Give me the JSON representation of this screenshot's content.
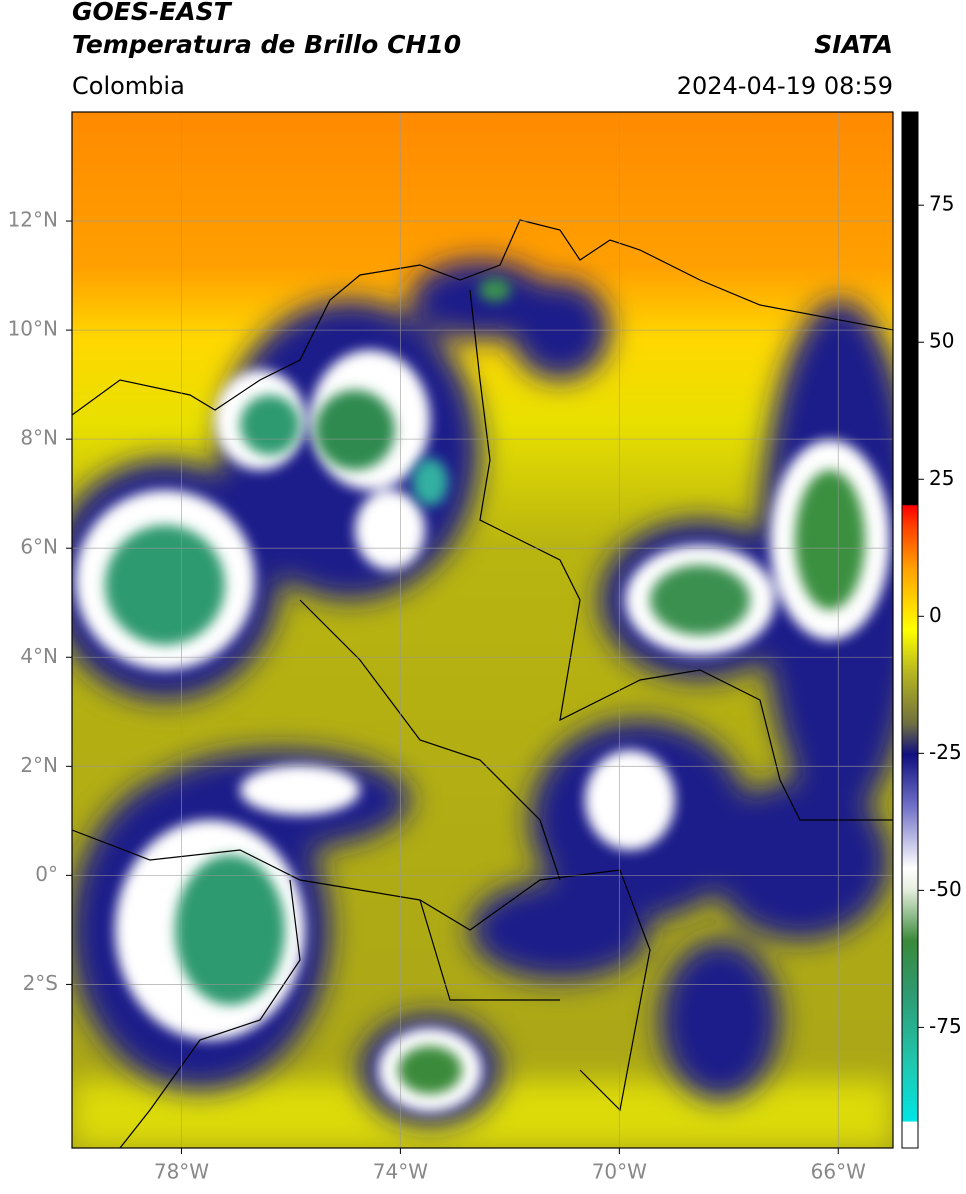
{
  "header": {
    "title_line1": "GOES-EAST",
    "title_line2": "Temperatura de Brillo CH10",
    "source": "SIATA",
    "region": "Colombia",
    "timestamp": "2024-04-19 08:59"
  },
  "map": {
    "lon_range": [
      -80,
      -65
    ],
    "lat_range": [
      -5,
      14
    ],
    "lon_ticks": [
      {
        "value": -78,
        "label": "78°W"
      },
      {
        "value": -74,
        "label": "74°W"
      },
      {
        "value": -70,
        "label": "70°W"
      },
      {
        "value": -66,
        "label": "66°W"
      }
    ],
    "lat_ticks": [
      {
        "value": 12,
        "label": "12°N"
      },
      {
        "value": 10,
        "label": "10°N"
      },
      {
        "value": 8,
        "label": "8°N"
      },
      {
        "value": 6,
        "label": "6°N"
      },
      {
        "value": 4,
        "label": "4°N"
      },
      {
        "value": 2,
        "label": "2°N"
      },
      {
        "value": 0,
        "label": "0°"
      },
      {
        "value": -2,
        "label": "2°S"
      }
    ]
  },
  "colorbar": {
    "range": [
      -97,
      92
    ],
    "ticks": [
      75,
      50,
      25,
      0,
      -25,
      -50,
      -75
    ]
  }
}
